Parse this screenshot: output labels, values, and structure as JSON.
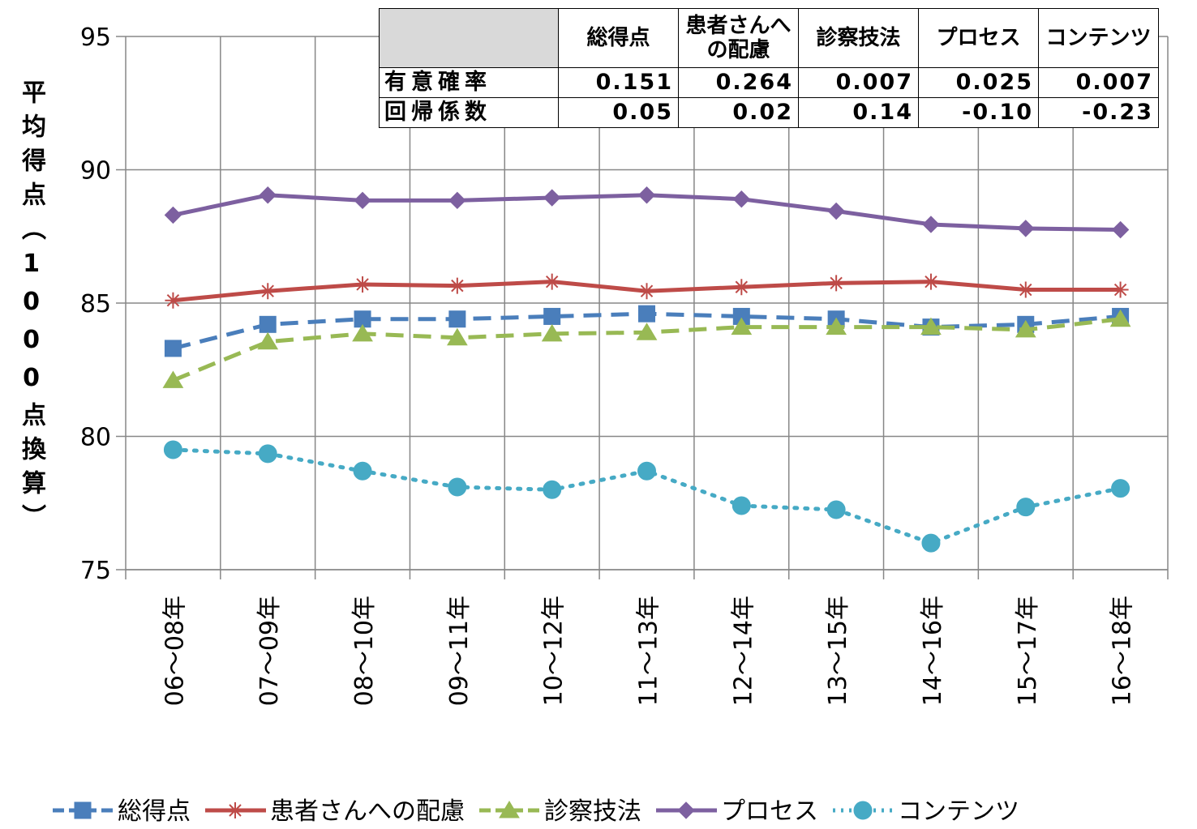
{
  "chart_data": {
    "type": "line",
    "ylabel": "平均得点（1000点換算）",
    "categories": [
      "06～08年",
      "07～09年",
      "08～10年",
      "09～11年",
      "10～12年",
      "11～13年",
      "12～14年",
      "13～15年",
      "14～16年",
      "15～17年",
      "16～18年"
    ],
    "ylim": [
      75,
      95
    ],
    "yticks": [
      75,
      80,
      85,
      90,
      95
    ],
    "grid": true,
    "series": [
      {
        "name": "総得点",
        "color": "#4a7ebb",
        "marker": "square",
        "line_style": "dashed",
        "values": [
          83.3,
          84.2,
          84.4,
          84.4,
          84.5,
          84.6,
          84.5,
          84.4,
          84.1,
          84.2,
          84.5
        ]
      },
      {
        "name": "患者さんへの配慮",
        "color": "#be4b48",
        "marker": "star",
        "line_style": "solid",
        "values": [
          85.1,
          85.45,
          85.7,
          85.65,
          85.8,
          85.45,
          85.6,
          85.75,
          85.8,
          85.5,
          85.5
        ]
      },
      {
        "name": "診察技法",
        "color": "#98b954",
        "marker": "triangle",
        "line_style": "dashed",
        "values": [
          82.1,
          83.55,
          83.85,
          83.7,
          83.85,
          83.9,
          84.1,
          84.1,
          84.1,
          84.0,
          84.4
        ]
      },
      {
        "name": "プロセス",
        "color": "#7d60a0",
        "marker": "diamond",
        "line_style": "solid",
        "values": [
          88.3,
          89.05,
          88.85,
          88.85,
          88.95,
          89.05,
          88.9,
          88.45,
          87.95,
          87.8,
          87.75
        ]
      },
      {
        "name": "コンテンツ",
        "color": "#46aac5",
        "marker": "circle",
        "line_style": "dotted",
        "values": [
          79.5,
          79.35,
          78.7,
          78.1,
          78.0,
          78.7,
          77.4,
          77.25,
          76.0,
          77.35,
          78.05
        ]
      }
    ],
    "table": {
      "columns": [
        "総得点",
        "患者さんへの配慮",
        "診察技法",
        "プロセス",
        "コンテンツ"
      ],
      "rows": [
        {
          "label": "有意確率",
          "values": [
            "0.151",
            "0.264",
            "0.007",
            "0.025",
            "0.007"
          ]
        },
        {
          "label": "回帰係数",
          "values": [
            "0.05",
            "0.02",
            "0.14",
            "-0.10",
            "-0.23"
          ]
        }
      ]
    }
  }
}
